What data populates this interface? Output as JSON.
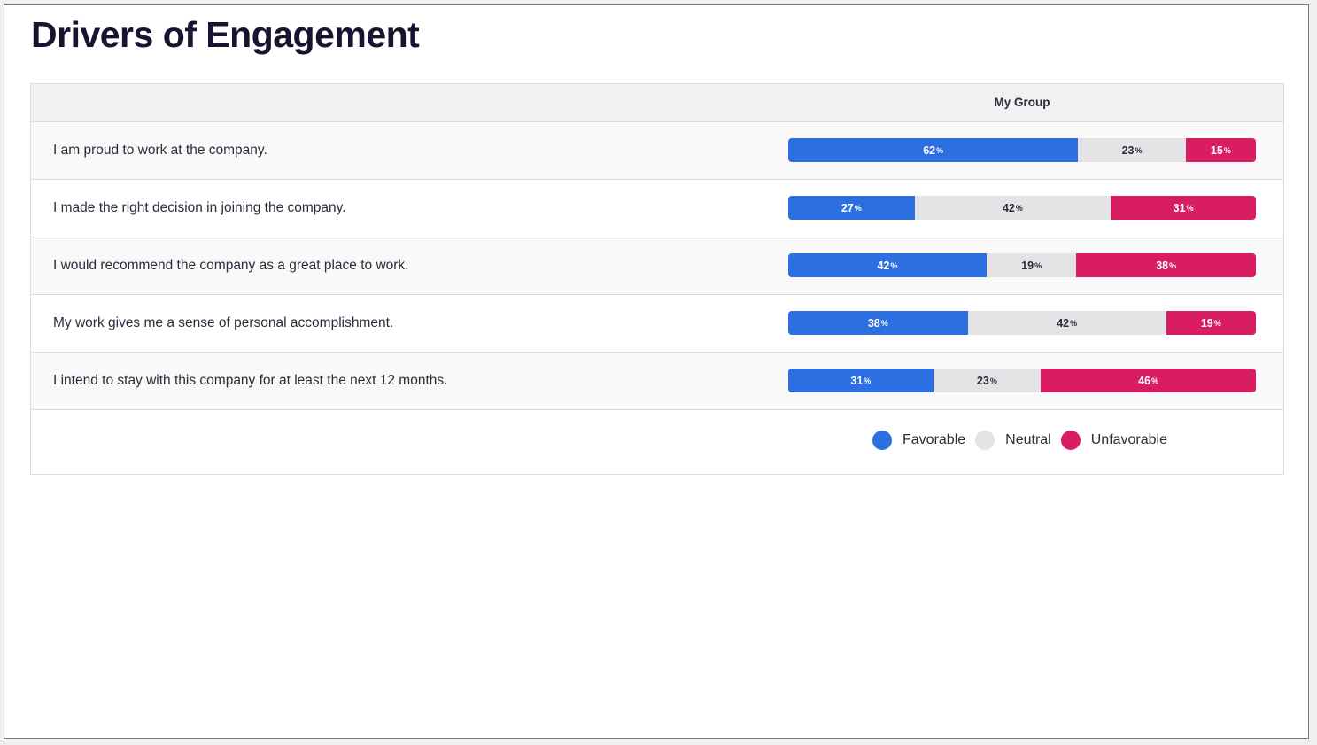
{
  "page": {
    "title": "Drivers of Engagement"
  },
  "table": {
    "group_label": "My Group"
  },
  "colors": {
    "favorable": "#2c6fe0",
    "neutral": "#e4e4e6",
    "unfavorable": "#d81d62"
  },
  "chart_data": {
    "type": "bar",
    "orientation": "horizontal-stacked-100",
    "categories": [
      "I am proud to work at the company.",
      "I made the right decision in joining the company.",
      "I would recommend the company as a great place to work.",
      "My work gives me a sense of personal accomplishment.",
      "I intend to stay with this company for at least the next 12 months."
    ],
    "series": [
      {
        "name": "Favorable",
        "values": [
          62,
          27,
          42,
          38,
          31
        ]
      },
      {
        "name": "Neutral",
        "values": [
          23,
          42,
          19,
          42,
          23
        ]
      },
      {
        "name": "Unfavorable",
        "values": [
          15,
          31,
          38,
          19,
          46
        ]
      }
    ],
    "unit": "%",
    "legend_position": "bottom-right"
  }
}
